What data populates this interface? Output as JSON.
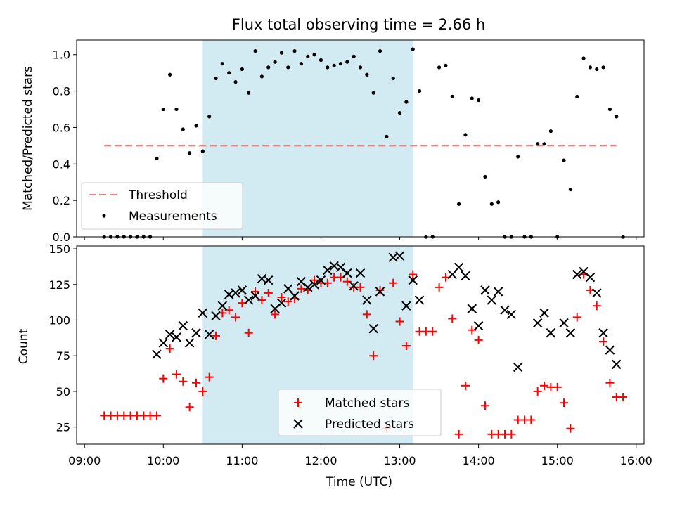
{
  "chart_data": [
    {
      "type": "scatter",
      "title": "Flux total observing time = 2.66 h",
      "xlabel": "",
      "ylabel": "Matched/Predicted stars",
      "xlim": [
        "09:00",
        "16:00"
      ],
      "ylim": [
        0,
        1.08
      ],
      "yticks": [
        "0.0",
        "0.2",
        "0.4",
        "0.6",
        "0.8",
        "1.0"
      ],
      "ytick_values": [
        0,
        0.2,
        0.4,
        0.6,
        0.8,
        1.0
      ],
      "grid": false,
      "highlight_span": {
        "start": "10:30",
        "end": "13:10",
        "color": "#add8e6"
      },
      "threshold": {
        "name": "Threshold",
        "value": 0.5,
        "x_start": "09:15",
        "x_end": "15:45",
        "color": "#f08080",
        "style": "dashed"
      },
      "legend": {
        "placement": "lower-left",
        "entries": [
          "Threshold",
          "Measurements"
        ]
      },
      "series": [
        {
          "name": "Measurements",
          "marker": "dot",
          "color": "#000000",
          "points": [
            [
              "09:15",
              0.0
            ],
            [
              "09:20",
              0.0
            ],
            [
              "09:25",
              0.0
            ],
            [
              "09:30",
              0.0
            ],
            [
              "09:35",
              0.0
            ],
            [
              "09:40",
              0.0
            ],
            [
              "09:45",
              0.0
            ],
            [
              "09:50",
              0.0
            ],
            [
              "09:55",
              0.43
            ],
            [
              "10:00",
              0.7
            ],
            [
              "10:05",
              0.89
            ],
            [
              "10:10",
              0.7
            ],
            [
              "10:15",
              0.59
            ],
            [
              "10:20",
              0.46
            ],
            [
              "10:25",
              0.61
            ],
            [
              "10:30",
              0.47
            ],
            [
              "10:35",
              0.66
            ],
            [
              "10:40",
              0.87
            ],
            [
              "10:45",
              0.95
            ],
            [
              "10:50",
              0.9
            ],
            [
              "10:55",
              0.85
            ],
            [
              "11:00",
              0.92
            ],
            [
              "11:05",
              0.79
            ],
            [
              "11:10",
              1.02
            ],
            [
              "11:15",
              0.88
            ],
            [
              "11:20",
              0.93
            ],
            [
              "11:25",
              0.96
            ],
            [
              "11:30",
              1.01
            ],
            [
              "11:35",
              0.93
            ],
            [
              "11:40",
              1.02
            ],
            [
              "11:45",
              0.95
            ],
            [
              "11:50",
              0.99
            ],
            [
              "11:55",
              1.0
            ],
            [
              "12:00",
              0.97
            ],
            [
              "12:05",
              0.93
            ],
            [
              "12:10",
              0.94
            ],
            [
              "12:15",
              0.95
            ],
            [
              "12:20",
              0.96
            ],
            [
              "12:25",
              0.99
            ],
            [
              "12:30",
              0.93
            ],
            [
              "12:35",
              0.89
            ],
            [
              "12:40",
              0.79
            ],
            [
              "12:45",
              1.02
            ],
            [
              "12:50",
              0.55
            ],
            [
              "12:55",
              0.87
            ],
            [
              "13:00",
              0.68
            ],
            [
              "13:05",
              0.74
            ],
            [
              "13:10",
              1.03
            ],
            [
              "13:15",
              0.8
            ],
            [
              "13:20",
              0.0
            ],
            [
              "13:25",
              0.0
            ],
            [
              "13:30",
              0.93
            ],
            [
              "13:35",
              0.94
            ],
            [
              "13:40",
              0.77
            ],
            [
              "13:45",
              0.18
            ],
            [
              "13:50",
              0.56
            ],
            [
              "13:55",
              0.76
            ],
            [
              "14:00",
              0.75
            ],
            [
              "14:05",
              0.33
            ],
            [
              "14:10",
              0.18
            ],
            [
              "14:15",
              0.19
            ],
            [
              "14:20",
              0.0
            ],
            [
              "14:25",
              0.0
            ],
            [
              "14:30",
              0.44
            ],
            [
              "14:35",
              0.0
            ],
            [
              "14:40",
              0.0
            ],
            [
              "14:45",
              0.51
            ],
            [
              "14:50",
              0.51
            ],
            [
              "14:55",
              0.58
            ],
            [
              "15:00",
              0.0
            ],
            [
              "15:05",
              0.42
            ],
            [
              "15:10",
              0.26
            ],
            [
              "15:15",
              0.77
            ],
            [
              "15:20",
              0.98
            ],
            [
              "15:25",
              0.93
            ],
            [
              "15:30",
              0.92
            ],
            [
              "15:35",
              0.93
            ],
            [
              "15:40",
              0.7
            ],
            [
              "15:45",
              0.66
            ],
            [
              "15:50",
              0.0
            ]
          ]
        }
      ]
    },
    {
      "type": "scatter",
      "title": "",
      "xlabel": "Time (UTC)",
      "ylabel": "Count",
      "xlim": [
        "09:00",
        "16:00"
      ],
      "xticks": [
        "09:00",
        "10:00",
        "11:00",
        "12:00",
        "13:00",
        "14:00",
        "15:00",
        "16:00"
      ],
      "ylim": [
        13,
        152
      ],
      "yticks": [
        "25",
        "50",
        "75",
        "100",
        "125",
        "150"
      ],
      "ytick_values": [
        25,
        50,
        75,
        100,
        125,
        150
      ],
      "grid": false,
      "highlight_span": {
        "start": "10:30",
        "end": "13:10",
        "color": "#add8e6"
      },
      "legend": {
        "placement": "lower-center",
        "entries": [
          "Matched stars",
          "Predicted stars"
        ]
      },
      "series": [
        {
          "name": "Matched stars",
          "marker": "plus",
          "color": "#ff0000",
          "points": [
            [
              "09:15",
              33
            ],
            [
              "09:20",
              33
            ],
            [
              "09:25",
              33
            ],
            [
              "09:30",
              33
            ],
            [
              "09:35",
              33
            ],
            [
              "09:40",
              33
            ],
            [
              "09:45",
              33
            ],
            [
              "09:50",
              33
            ],
            [
              "09:55",
              33
            ],
            [
              "10:00",
              59
            ],
            [
              "10:05",
              80
            ],
            [
              "10:10",
              62
            ],
            [
              "10:15",
              57
            ],
            [
              "10:20",
              39
            ],
            [
              "10:25",
              56
            ],
            [
              "10:30",
              50
            ],
            [
              "10:35",
              60
            ],
            [
              "10:40",
              89
            ],
            [
              "10:45",
              105
            ],
            [
              "10:50",
              107
            ],
            [
              "10:55",
              102
            ],
            [
              "11:00",
              112
            ],
            [
              "11:05",
              91
            ],
            [
              "11:10",
              120
            ],
            [
              "11:15",
              114
            ],
            [
              "11:20",
              119
            ],
            [
              "11:25",
              104
            ],
            [
              "11:30",
              116
            ],
            [
              "11:35",
              113
            ],
            [
              "11:40",
              115
            ],
            [
              "11:45",
              122
            ],
            [
              "11:50",
              121
            ],
            [
              "11:55",
              128
            ],
            [
              "12:00",
              126
            ],
            [
              "12:05",
              126
            ],
            [
              "12:10",
              130
            ],
            [
              "12:15",
              130
            ],
            [
              "12:20",
              127
            ],
            [
              "12:25",
              123
            ],
            [
              "12:30",
              123
            ],
            [
              "12:35",
              104
            ],
            [
              "12:40",
              75
            ],
            [
              "12:45",
              121
            ],
            [
              "12:50",
              24
            ],
            [
              "12:55",
              126
            ],
            [
              "13:00",
              99
            ],
            [
              "13:05",
              82
            ],
            [
              "13:10",
              132
            ],
            [
              "13:15",
              92
            ],
            [
              "13:20",
              92
            ],
            [
              "13:25",
              92
            ],
            [
              "13:30",
              123
            ],
            [
              "13:35",
              130
            ],
            [
              "13:40",
              101
            ],
            [
              "13:45",
              20
            ],
            [
              "13:50",
              54
            ],
            [
              "13:55",
              93
            ],
            [
              "14:00",
              86
            ],
            [
              "14:05",
              40
            ],
            [
              "14:10",
              20
            ],
            [
              "14:15",
              20
            ],
            [
              "14:20",
              20
            ],
            [
              "14:25",
              20
            ],
            [
              "14:30",
              30
            ],
            [
              "14:35",
              30
            ],
            [
              "14:40",
              30
            ],
            [
              "14:45",
              50
            ],
            [
              "14:50",
              54
            ],
            [
              "14:55",
              53
            ],
            [
              "15:00",
              53
            ],
            [
              "15:05",
              42
            ],
            [
              "15:10",
              24
            ],
            [
              "15:15",
              102
            ],
            [
              "15:20",
              132
            ],
            [
              "15:25",
              121
            ],
            [
              "15:30",
              110
            ],
            [
              "15:35",
              85
            ],
            [
              "15:40",
              56
            ],
            [
              "15:45",
              46
            ],
            [
              "15:50",
              46
            ]
          ]
        },
        {
          "name": "Predicted stars",
          "marker": "x",
          "color": "#000000",
          "points": [
            [
              "09:55",
              76
            ],
            [
              "10:00",
              84
            ],
            [
              "10:05",
              90
            ],
            [
              "10:10",
              88
            ],
            [
              "10:15",
              96
            ],
            [
              "10:20",
              84
            ],
            [
              "10:25",
              91
            ],
            [
              "10:30",
              105
            ],
            [
              "10:35",
              90
            ],
            [
              "10:40",
              103
            ],
            [
              "10:45",
              110
            ],
            [
              "10:50",
              118
            ],
            [
              "10:55",
              119
            ],
            [
              "11:00",
              121
            ],
            [
              "11:05",
              114
            ],
            [
              "11:10",
              117
            ],
            [
              "11:15",
              129
            ],
            [
              "11:20",
              128
            ],
            [
              "11:25",
              108
            ],
            [
              "11:30",
              112
            ],
            [
              "11:35",
              122
            ],
            [
              "11:40",
              117
            ],
            [
              "11:45",
              127
            ],
            [
              "11:50",
              123
            ],
            [
              "11:55",
              125
            ],
            [
              "12:00",
              128
            ],
            [
              "12:05",
              135
            ],
            [
              "12:10",
              138
            ],
            [
              "12:15",
              137
            ],
            [
              "12:20",
              133
            ],
            [
              "12:25",
              124
            ],
            [
              "12:30",
              133
            ],
            [
              "12:35",
              114
            ],
            [
              "12:40",
              94
            ],
            [
              "12:45",
              120
            ],
            [
              "12:55",
              144
            ],
            [
              "13:00",
              145
            ],
            [
              "13:05",
              110
            ],
            [
              "13:10",
              128
            ],
            [
              "13:15",
              114
            ],
            [
              "13:40",
              132
            ],
            [
              "13:45",
              137
            ],
            [
              "13:50",
              131
            ],
            [
              "13:55",
              108
            ],
            [
              "14:00",
              96
            ],
            [
              "14:05",
              121
            ],
            [
              "14:10",
              114
            ],
            [
              "14:15",
              120
            ],
            [
              "14:20",
              107
            ],
            [
              "14:25",
              104
            ],
            [
              "14:30",
              67
            ],
            [
              "14:45",
              98
            ],
            [
              "14:50",
              105
            ],
            [
              "14:55",
              91
            ],
            [
              "15:05",
              98
            ],
            [
              "15:10",
              91
            ],
            [
              "15:15",
              132
            ],
            [
              "15:20",
              134
            ],
            [
              "15:25",
              130
            ],
            [
              "15:30",
              119
            ],
            [
              "15:35",
              91
            ],
            [
              "15:40",
              79
            ],
            [
              "15:45",
              69
            ]
          ]
        }
      ]
    }
  ]
}
